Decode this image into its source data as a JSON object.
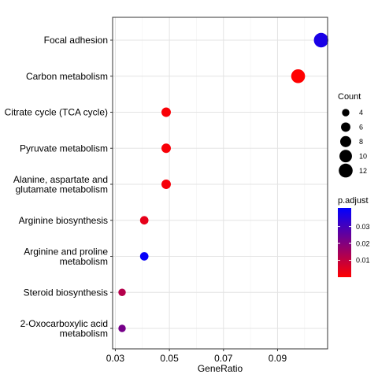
{
  "chart_data": {
    "type": "scatter",
    "xlabel": "GeneRatio",
    "ylabel": "",
    "xlim": [
      0.029,
      0.1085
    ],
    "xticks": [
      0.03,
      0.05,
      0.07,
      0.09
    ],
    "xtick_labels": [
      "0.03",
      "0.05",
      "0.07",
      "0.09"
    ],
    "grid": true,
    "categories": [
      {
        "label": [
          "Focal adhesion"
        ],
        "x": 0.1061,
        "count": 13,
        "p_adjust": 0.037
      },
      {
        "label": [
          "Carbon metabolism"
        ],
        "x": 0.0976,
        "count": 12,
        "p_adjust": 0.0
      },
      {
        "label": [
          "Citrate cycle (TCA cycle)"
        ],
        "x": 0.0488,
        "count": 6,
        "p_adjust": 0.001
      },
      {
        "label": [
          "Pyruvate metabolism"
        ],
        "x": 0.0488,
        "count": 6,
        "p_adjust": 0.0012
      },
      {
        "label": [
          "Alanine, aspartate and",
          "glutamate metabolism"
        ],
        "x": 0.0488,
        "count": 6,
        "p_adjust": 0.0015
      },
      {
        "label": [
          "Arginine biosynthesis"
        ],
        "x": 0.0407,
        "count": 5,
        "p_adjust": 0.004
      },
      {
        "label": [
          "Arginine and proline",
          "metabolism"
        ],
        "x": 0.0407,
        "count": 5,
        "p_adjust": 0.04
      },
      {
        "label": [
          "Steroid biosynthesis"
        ],
        "x": 0.0325,
        "count": 4,
        "p_adjust": 0.012
      },
      {
        "label": [
          "2-Oxocarboxylic acid",
          "metabolism"
        ],
        "x": 0.0325,
        "count": 4,
        "p_adjust": 0.022
      }
    ],
    "legend": {
      "size_title": "Count",
      "size_values": [
        4,
        6,
        8,
        10,
        12
      ],
      "color_title": "p.adjust",
      "color_ticks": [
        0.03,
        0.02,
        0.01
      ],
      "color_range": [
        0.0,
        0.041
      ],
      "color_low": "#FF0000",
      "color_high": "#0000FF"
    }
  }
}
